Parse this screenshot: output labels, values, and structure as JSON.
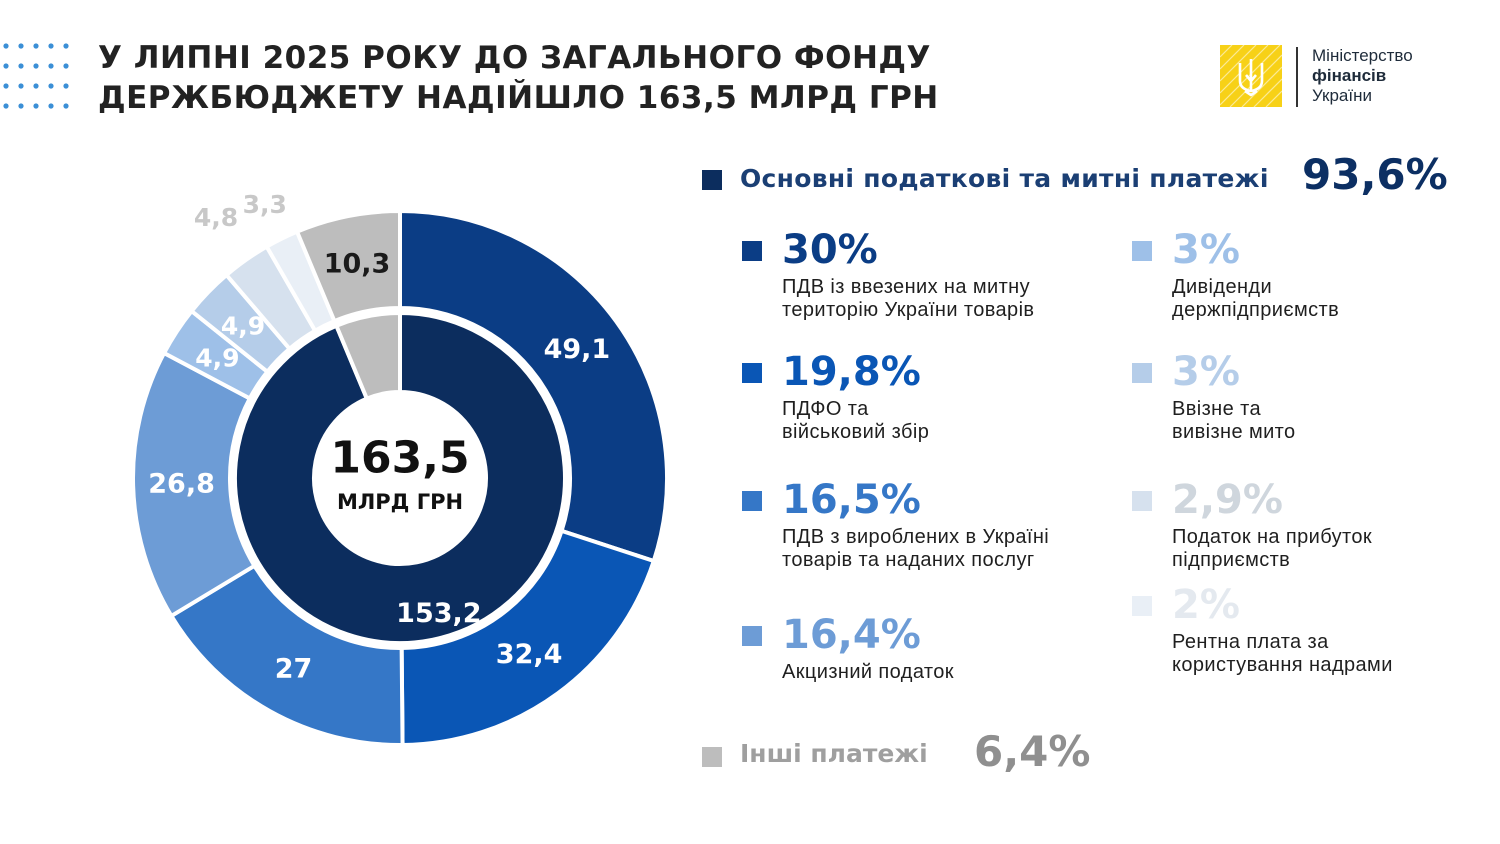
{
  "header": {
    "title_line1": "У ЛИПНІ 2025 РОКУ ДО ЗАГАЛЬНОГО ФОНДУ",
    "title_line2": "ДЕРЖБЮДЖЕТУ НАДІЙШЛО 163,5 МЛРД ГРН"
  },
  "logo": {
    "line1": "Міністерство",
    "line2": "фінансів",
    "line3": "України"
  },
  "colors": {
    "inner_main": "#0c2d5e",
    "inner_other": "#bdbdbd",
    "accent_title": "#1b3f74"
  },
  "chart_data": {
    "type": "pie",
    "title": "У ЛИПНІ 2025 РОКУ ДО ЗАГАЛЬНОГО ФОНДУ ДЕРЖБЮДЖЕТУ НАДІЙШЛО 163,5 МЛРД ГРН",
    "center_value": "163,5",
    "center_unit": "МЛРД ГРН",
    "total": 163.5,
    "inner_ring": [
      {
        "name": "Основні податкові та митні платежі",
        "value": 153.2,
        "label": "153,2",
        "color": "#0c2d5e"
      },
      {
        "name": "Інші платежі",
        "value": 10.3,
        "label": "10,3",
        "color": "#bdbdbd"
      }
    ],
    "outer_ring": [
      {
        "name": "ПДВ із ввезених на митну територію України товарів",
        "value": 49.1,
        "label": "49,1",
        "color": "#0b3d85"
      },
      {
        "name": "ПДФО та військовий збір",
        "value": 32.4,
        "label": "32,4",
        "color": "#0a56b5"
      },
      {
        "name": "ПДВ з вироблених в Україні товарів та наданих послуг",
        "value": 27,
        "label": "27",
        "color": "#3577c7"
      },
      {
        "name": "Акцизний податок",
        "value": 26.8,
        "label": "26,8",
        "color": "#6d9cd6"
      },
      {
        "name": "Дивіденди держпідприємств",
        "value": 4.9,
        "label": "4,9",
        "color": "#9ec0e8"
      },
      {
        "name": "Ввізне та вивізне мито",
        "value": 4.9,
        "label": "4,9",
        "color": "#b5cde9"
      },
      {
        "name": "Податок на прибуток підприємств",
        "value": 4.8,
        "label": "4,8",
        "color": "#d6e1ee"
      },
      {
        "name": "Рентна плата за користування надрами",
        "value": 3.3,
        "label": "3,3",
        "color": "#e9eff6"
      },
      {
        "name": "Інші платежі",
        "value": 10.3,
        "label": "10,3",
        "color": "#bdbdbd"
      }
    ]
  },
  "legend": {
    "main": {
      "label": "Основні податкові та митні платежі",
      "pct": "93,6%",
      "color": "#0c2d5e"
    },
    "other": {
      "label": "Інші платежі",
      "pct": "6,4%",
      "color": "#bdbdbd"
    },
    "items": [
      {
        "pct": "30%",
        "desc": "ПДВ із ввезених на митну\nтериторію України товарів",
        "color": "#0b3d85"
      },
      {
        "pct": "19,8%",
        "desc": "ПДФО та\nвійськовий збір",
        "color": "#0a56b5"
      },
      {
        "pct": "16,5%",
        "desc": "ПДВ з вироблених в Україні\nтоварів та наданих послуг",
        "color": "#3577c7"
      },
      {
        "pct": "16,4%",
        "desc": "Акцизний податок",
        "color": "#6d9cd6"
      },
      {
        "pct": "3%",
        "desc": "Дивіденди\nдержпідприємств",
        "color": "#9ec0e8"
      },
      {
        "pct": "3%",
        "desc": "Ввізне та\nвивізне мито",
        "color": "#b5cde9"
      },
      {
        "pct": "2,9%",
        "desc": "Податок на прибуток\nпідприємств",
        "color": "#d6e1ee"
      },
      {
        "pct": "2%",
        "desc": "Рентна плата за\nкористування надрами",
        "color": "#e9eff6"
      }
    ]
  }
}
